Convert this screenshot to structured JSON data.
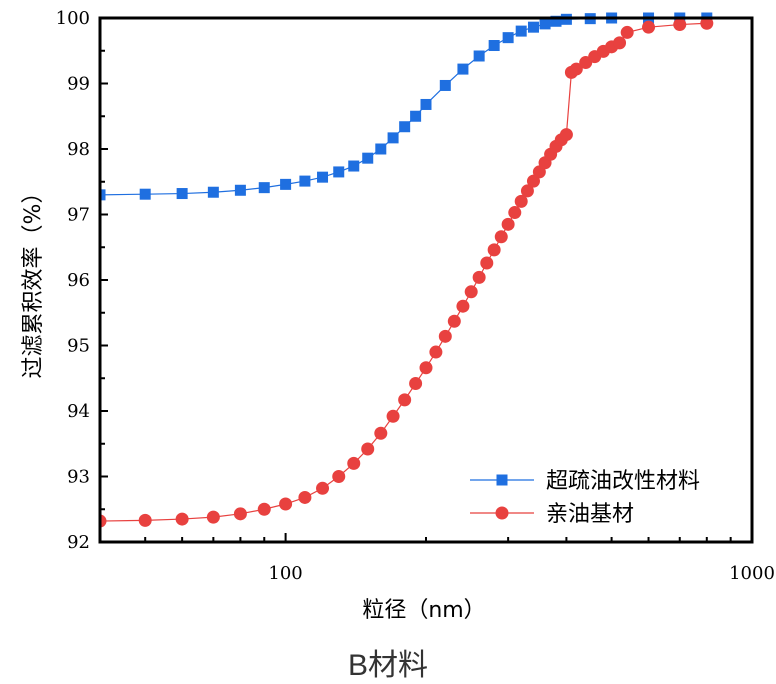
{
  "caption": "B材料",
  "chart_data": {
    "type": "line",
    "xlabel": "粒径（nm）",
    "ylabel": "过滤累积效率（%）",
    "xscale": "log",
    "xlim": [
      40,
      1000
    ],
    "ylim": [
      92,
      100
    ],
    "xticks": [
      100,
      1000
    ],
    "xtick_labels": [
      "100",
      "1000"
    ],
    "yticks": [
      92,
      93,
      94,
      95,
      96,
      97,
      98,
      99,
      100
    ],
    "ytick_labels": [
      "92",
      "93",
      "94",
      "95",
      "96",
      "97",
      "98",
      "99",
      "100"
    ],
    "grid": false,
    "legend_position": "bottom-right",
    "series": [
      {
        "name": "超疏油改性材料",
        "color": "#1f6fe0",
        "marker": "square",
        "x": [
          40,
          50,
          60,
          70,
          80,
          90,
          100,
          110,
          120,
          130,
          140,
          150,
          160,
          170,
          180,
          190,
          200,
          220,
          240,
          260,
          280,
          300,
          320,
          340,
          360,
          380,
          400,
          450,
          500,
          600,
          700,
          800
        ],
        "y": [
          97.3,
          97.31,
          97.32,
          97.34,
          97.37,
          97.41,
          97.46,
          97.51,
          97.57,
          97.65,
          97.74,
          97.86,
          98.0,
          98.17,
          98.34,
          98.5,
          98.68,
          98.97,
          99.22,
          99.42,
          99.58,
          99.7,
          99.8,
          99.86,
          99.91,
          99.95,
          99.98,
          99.99,
          100.0,
          100.0,
          100.0,
          100.0
        ]
      },
      {
        "name": "亲油基材",
        "color": "#e8413f",
        "marker": "circle",
        "x": [
          40,
          50,
          60,
          70,
          80,
          90,
          100,
          110,
          120,
          130,
          140,
          150,
          160,
          170,
          180,
          190,
          200,
          210,
          220,
          230,
          240,
          250,
          260,
          270,
          280,
          290,
          300,
          310,
          320,
          330,
          340,
          350,
          360,
          370,
          380,
          390,
          400,
          410,
          420,
          440,
          460,
          480,
          500,
          520,
          540,
          600,
          700,
          800
        ],
        "y": [
          92.32,
          92.33,
          92.35,
          92.38,
          92.43,
          92.5,
          92.58,
          92.68,
          92.82,
          93.0,
          93.2,
          93.42,
          93.66,
          93.92,
          94.17,
          94.42,
          94.66,
          94.9,
          95.14,
          95.37,
          95.6,
          95.82,
          96.04,
          96.26,
          96.46,
          96.66,
          96.85,
          97.03,
          97.2,
          97.36,
          97.51,
          97.65,
          97.79,
          97.92,
          98.04,
          98.14,
          98.22,
          99.17,
          99.22,
          99.32,
          99.41,
          99.49,
          99.56,
          99.62,
          99.78,
          99.86,
          99.9,
          99.92
        ]
      }
    ]
  }
}
